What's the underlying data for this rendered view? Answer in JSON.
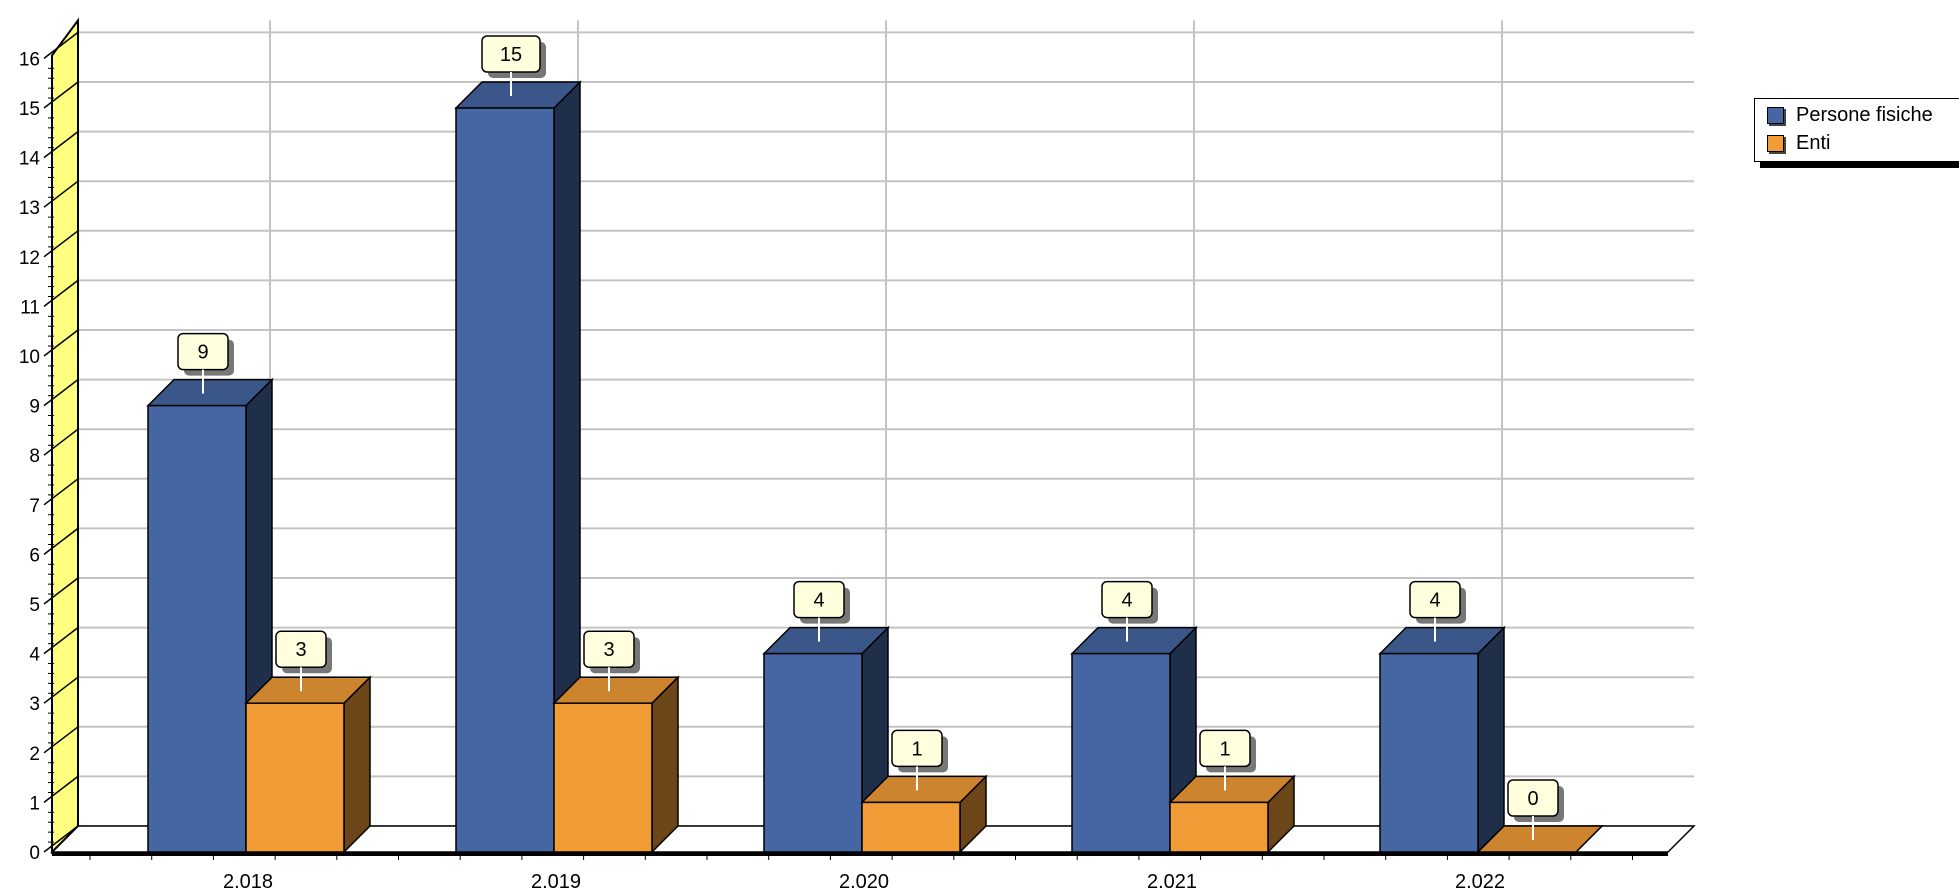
{
  "chart_data": {
    "type": "bar",
    "categories": [
      "2.018",
      "2.019",
      "2.020",
      "2.021",
      "2.022"
    ],
    "series": [
      {
        "name": "Persone fisiche",
        "values": [
          9,
          15,
          4,
          4,
          4
        ],
        "color": "#4566a2"
      },
      {
        "name": "Enti",
        "values": [
          3,
          3,
          1,
          1,
          0
        ],
        "color": "#f19b36"
      }
    ],
    "y_ticks": [
      "0",
      "1",
      "2",
      "3",
      "4",
      "5",
      "6",
      "7",
      "8",
      "9",
      "10",
      "11",
      "12",
      "13",
      "14",
      "15",
      "16"
    ],
    "ylim": [
      0,
      16
    ],
    "grid": true,
    "legend_position": "top-right",
    "three_d": true,
    "wall_color": "#ffff80",
    "label_box_color": "#ffffdd"
  }
}
